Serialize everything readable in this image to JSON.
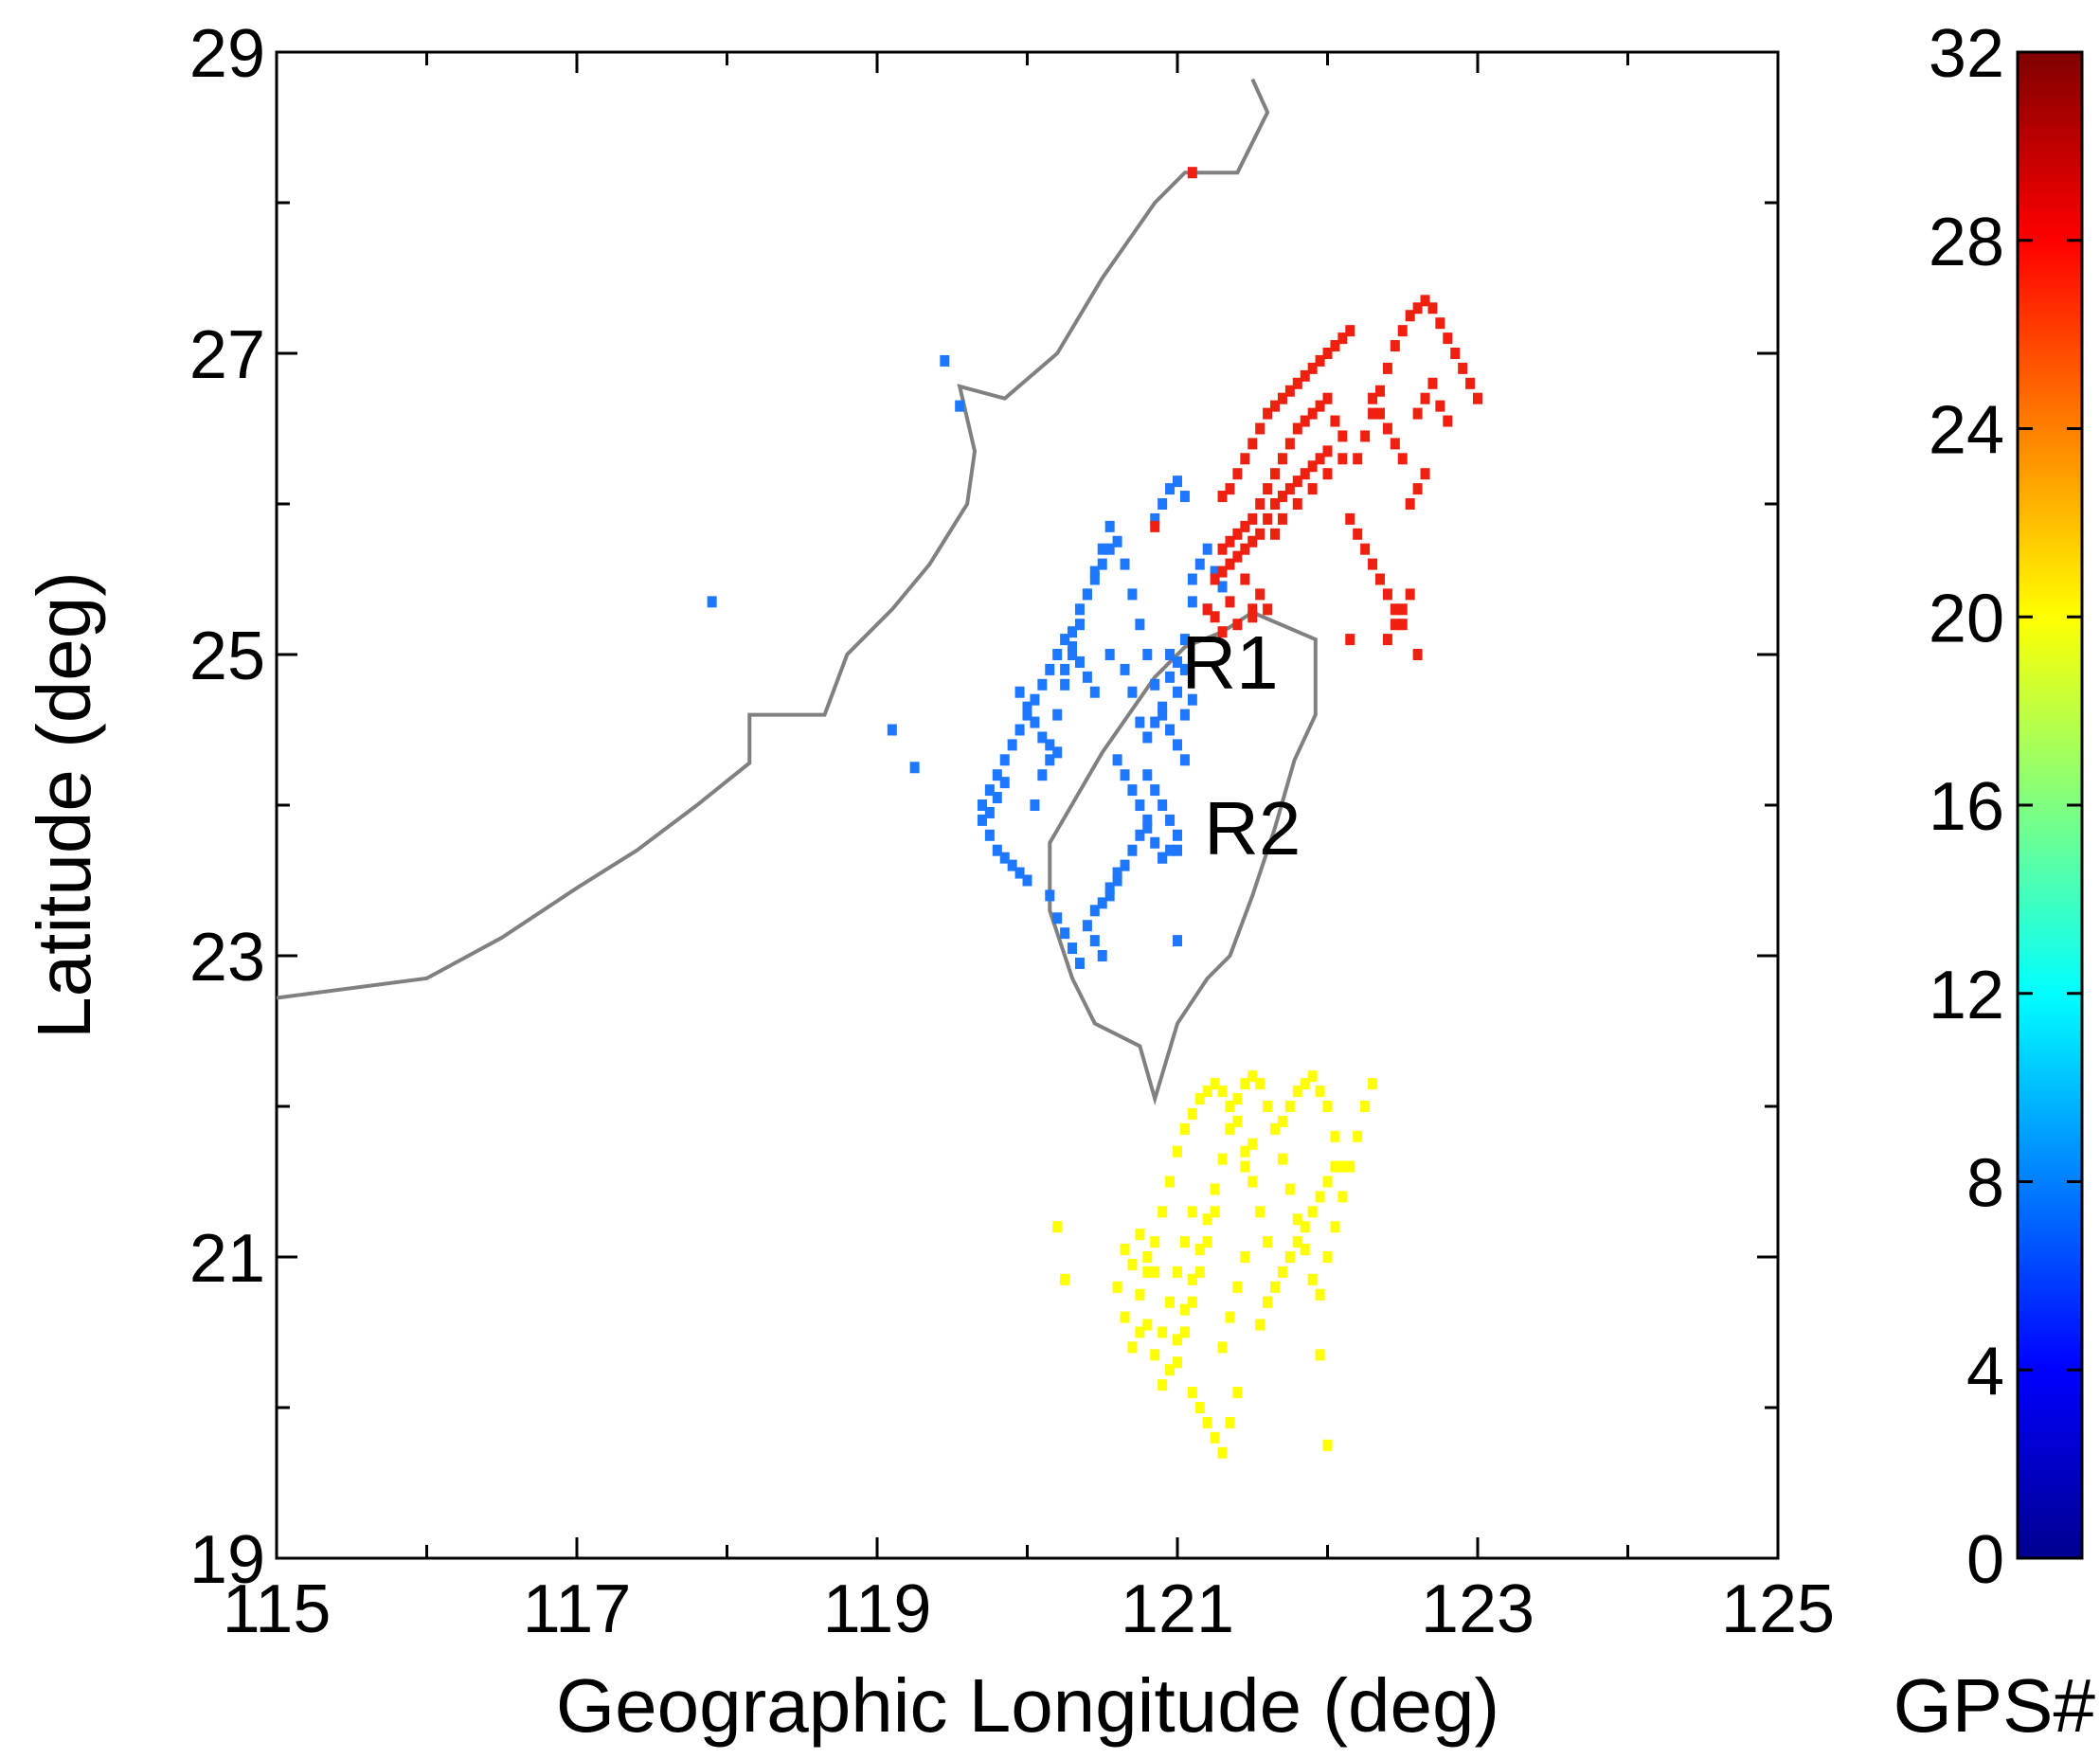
{
  "chart_data": {
    "type": "scatter",
    "title": "",
    "xlabel": "Geographic Longitude (deg)",
    "ylabel": "Latitude (deg)",
    "xlim": [
      115,
      125
    ],
    "ylim": [
      19,
      29
    ],
    "xticks": [
      115,
      117,
      119,
      121,
      123,
      125
    ],
    "yticks": [
      19,
      21,
      23,
      25,
      27,
      29
    ],
    "grid": false,
    "colorbar": {
      "label": "GPS#",
      "range": [
        0,
        32
      ],
      "ticks": [
        0,
        4,
        8,
        12,
        16,
        20,
        24,
        28,
        32
      ],
      "colormap": "jet"
    },
    "annotations": [
      {
        "text": "R1",
        "x": 121.35,
        "y": 24.95
      },
      {
        "text": "R2",
        "x": 121.5,
        "y": 23.85
      }
    ],
    "coastline": [
      [
        115.0,
        22.72
      ],
      [
        116.0,
        22.85
      ],
      [
        116.5,
        23.12
      ],
      [
        117.0,
        23.45
      ],
      [
        117.4,
        23.7
      ],
      [
        117.8,
        24.0
      ],
      [
        118.15,
        24.28
      ],
      [
        118.15,
        24.6
      ],
      [
        118.65,
        24.6
      ],
      [
        118.8,
        25.0
      ],
      [
        119.1,
        25.3
      ],
      [
        119.35,
        25.6
      ],
      [
        119.6,
        26.0
      ],
      [
        119.65,
        26.35
      ],
      [
        119.55,
        26.78
      ],
      [
        119.85,
        26.7
      ],
      [
        120.2,
        27.0
      ],
      [
        120.5,
        27.5
      ],
      [
        120.85,
        28.0
      ],
      [
        121.05,
        28.2
      ],
      [
        121.4,
        28.2
      ],
      [
        121.6,
        28.6
      ],
      [
        121.5,
        28.82
      ]
    ],
    "taiwan_outline": [
      [
        121.5,
        25.28
      ],
      [
        121.92,
        25.1
      ],
      [
        121.92,
        24.6
      ],
      [
        121.78,
        24.3
      ],
      [
        121.65,
        23.85
      ],
      [
        121.5,
        23.4
      ],
      [
        121.35,
        23.0
      ],
      [
        121.2,
        22.85
      ],
      [
        121.0,
        22.55
      ],
      [
        120.85,
        22.05
      ],
      [
        120.75,
        22.4
      ],
      [
        120.45,
        22.55
      ],
      [
        120.3,
        22.85
      ],
      [
        120.15,
        23.3
      ],
      [
        120.15,
        23.75
      ],
      [
        120.5,
        24.35
      ],
      [
        120.85,
        24.85
      ],
      [
        121.05,
        25.05
      ],
      [
        121.3,
        25.15
      ],
      [
        121.5,
        25.28
      ]
    ],
    "series": [
      {
        "name": "",
        "value": 9,
        "color": "#1e78ff",
        "x": [
          119.45,
          119.55,
          117.9,
          119.1,
          119.25,
          120.55,
          120.5,
          120.45,
          120.4,
          120.35,
          120.3,
          120.25,
          120.2,
          120.15,
          120.1,
          120.05,
          120.0,
          119.95,
          119.9,
          119.85,
          119.8,
          119.75,
          119.7,
          119.7,
          119.75,
          119.8,
          119.85,
          119.9,
          119.95,
          120.0,
          120.05,
          120.1,
          120.15,
          120.2,
          120.25,
          120.3,
          120.35,
          120.4,
          120.45,
          120.5,
          120.55,
          120.6,
          120.65,
          120.7,
          120.75,
          120.8,
          120.85,
          120.9,
          120.95,
          121.0,
          121.05,
          121.1,
          121.15,
          121.2,
          121.25,
          121.3,
          120.85,
          120.9,
          120.95,
          121.0,
          121.05,
          120.8,
          120.85,
          120.9,
          120.95,
          121.0,
          121.05,
          121.1,
          120.6,
          120.65,
          120.7,
          120.75,
          120.8,
          120.85,
          120.9,
          120.95,
          121.0,
          121.05,
          120.55,
          120.6,
          120.65,
          120.7,
          120.75,
          120.8,
          120.45,
          120.5,
          120.55,
          120.6,
          120.4,
          120.45,
          120.5,
          120.35,
          120.3,
          120.25,
          120.2,
          120.15,
          120.95,
          121.0,
          121.05,
          120.95,
          121.0,
          120.9,
          120.85,
          120.3,
          120.35,
          120.4,
          120.45,
          120.25,
          120.15,
          120.2,
          120.1,
          120.05,
          120.0,
          119.95,
          119.85,
          119.8,
          119.75,
          120.55,
          120.65,
          120.7,
          120.75,
          120.8,
          121.2,
          121.1,
          120.9,
          121.0
        ],
        "y": [
          26.95,
          26.65,
          25.35,
          24.5,
          24.25,
          25.85,
          25.7,
          25.55,
          25.4,
          25.3,
          25.15,
          25.1,
          25.0,
          24.9,
          24.8,
          24.7,
          24.6,
          24.5,
          24.4,
          24.3,
          24.2,
          24.1,
          24.0,
          23.9,
          23.8,
          23.7,
          23.65,
          23.6,
          23.55,
          23.5,
          24.0,
          24.2,
          24.4,
          24.6,
          24.8,
          25.0,
          25.2,
          25.4,
          25.5,
          25.6,
          25.7,
          25.75,
          25.6,
          25.4,
          25.2,
          25.0,
          24.8,
          24.6,
          24.5,
          24.4,
          24.3,
          25.5,
          25.6,
          25.7,
          25.55,
          25.45,
          25.9,
          26.0,
          26.1,
          26.15,
          26.05,
          24.2,
          24.1,
          24.0,
          23.9,
          23.7,
          24.6,
          24.7,
          24.3,
          24.2,
          24.1,
          24.0,
          23.85,
          23.75,
          23.65,
          23.7,
          23.8,
          24.9,
          23.4,
          23.5,
          23.6,
          23.7,
          23.8,
          23.9,
          23.3,
          23.35,
          23.45,
          23.55,
          23.2,
          23.1,
          23.0,
          22.95,
          23.05,
          23.15,
          23.25,
          23.4,
          25.0,
          24.95,
          25.1,
          24.85,
          24.75,
          24.65,
          24.55,
          25.05,
          24.95,
          24.85,
          24.75,
          24.9,
          24.3,
          24.35,
          24.45,
          24.55,
          24.65,
          24.75,
          24.15,
          24.05,
          23.95,
          25.0,
          24.9,
          24.75,
          24.55,
          24.45,
          25.3,
          25.35,
          23.65,
          23.1
        ]
      },
      {
        "name": "",
        "value": 29,
        "color": "#f02010",
        "x": [
          121.1,
          120.85,
          121.3,
          121.35,
          121.4,
          121.45,
          121.5,
          121.55,
          121.6,
          121.65,
          121.7,
          121.75,
          121.8,
          121.85,
          121.9,
          121.95,
          122.0,
          122.05,
          122.1,
          122.15,
          121.3,
          121.35,
          121.4,
          121.45,
          121.5,
          121.55,
          121.6,
          121.65,
          121.7,
          121.75,
          121.8,
          121.85,
          121.9,
          121.95,
          122.0,
          122.05,
          122.1,
          121.25,
          121.3,
          121.35,
          121.4,
          121.45,
          121.5,
          121.55,
          121.6,
          121.65,
          121.7,
          121.75,
          121.8,
          121.85,
          121.9,
          121.95,
          122.0,
          122.2,
          122.25,
          122.3,
          122.35,
          122.4,
          122.45,
          122.5,
          122.55,
          122.6,
          122.65,
          122.7,
          122.75,
          122.8,
          122.85,
          122.9,
          122.95,
          123.0,
          122.6,
          122.65,
          122.7,
          122.75,
          122.8,
          122.5,
          122.45,
          122.4,
          122.35,
          122.3,
          122.25,
          122.2,
          122.15,
          122.55,
          122.6,
          122.65,
          122.5,
          122.45,
          122.4,
          122.35,
          122.3,
          122.4,
          122.45,
          122.5,
          122.55,
          121.65,
          121.7,
          121.8,
          121.9,
          122.0,
          122.1,
          121.5,
          121.55,
          121.45,
          121.35,
          121.25,
          121.4,
          121.3,
          121.2,
          122.15,
          122.6,
          121.6,
          121.5
        ],
        "y": [
          28.2,
          25.85,
          26.05,
          26.1,
          26.2,
          26.3,
          26.4,
          26.5,
          26.6,
          26.65,
          26.7,
          26.75,
          26.8,
          26.85,
          26.9,
          26.95,
          27.0,
          27.05,
          27.1,
          27.15,
          25.7,
          25.75,
          25.8,
          25.85,
          25.9,
          26.0,
          26.1,
          26.2,
          26.3,
          26.4,
          26.5,
          26.55,
          26.6,
          26.65,
          26.7,
          26.55,
          26.45,
          25.5,
          25.55,
          25.6,
          25.65,
          25.7,
          25.75,
          25.8,
          25.9,
          26.0,
          26.05,
          26.1,
          26.15,
          26.2,
          26.25,
          26.3,
          26.35,
          26.3,
          26.45,
          26.6,
          26.75,
          26.9,
          27.05,
          27.15,
          27.25,
          27.3,
          27.35,
          27.3,
          27.2,
          27.1,
          27.0,
          26.9,
          26.8,
          26.7,
          26.6,
          26.7,
          26.8,
          26.65,
          26.55,
          25.2,
          25.3,
          25.4,
          25.5,
          25.6,
          25.7,
          25.8,
          25.9,
          26.0,
          26.1,
          26.2,
          26.3,
          26.4,
          26.5,
          26.6,
          26.7,
          25.1,
          25.2,
          25.3,
          25.4,
          25.8,
          25.9,
          26.0,
          26.1,
          26.2,
          26.3,
          25.3,
          25.4,
          25.5,
          25.35,
          25.25,
          25.2,
          25.15,
          25.3,
          25.1,
          25.0,
          25.3,
          25.25
        ]
      },
      {
        "name": "",
        "value": 20,
        "color": "#ffff00",
        "x": [
          120.2,
          120.25,
          120.6,
          120.65,
          120.7,
          120.75,
          120.8,
          120.85,
          120.9,
          120.95,
          121.0,
          121.05,
          121.1,
          121.15,
          121.2,
          121.25,
          121.3,
          121.35,
          121.4,
          121.45,
          121.5,
          121.55,
          121.6,
          120.65,
          120.7,
          120.75,
          120.8,
          120.85,
          120.9,
          120.95,
          121.0,
          121.05,
          121.1,
          121.15,
          121.2,
          121.25,
          121.3,
          121.35,
          121.4,
          121.45,
          121.5,
          121.55,
          121.6,
          121.65,
          121.7,
          121.75,
          121.8,
          121.85,
          121.9,
          121.95,
          122.0,
          122.05,
          122.1,
          122.15,
          122.2,
          122.25,
          122.3,
          121.7,
          121.75,
          121.8,
          121.85,
          121.9,
          121.95,
          122.0,
          122.05,
          122.1,
          121.6,
          121.65,
          121.7,
          121.75,
          121.8,
          121.85,
          121.9,
          121.95,
          122.0,
          122.05,
          121.1,
          121.15,
          121.2,
          121.25,
          121.3,
          121.35,
          121.4,
          121.0,
          121.05,
          121.1,
          121.15,
          121.2,
          121.25,
          120.9,
          120.95,
          121.0,
          121.05,
          121.1,
          121.3,
          121.35,
          121.4,
          121.45,
          122.0,
          121.95,
          121.55,
          121.6,
          120.8,
          120.85,
          120.75,
          121.5,
          121.45
        ],
        "y": [
          21.2,
          20.85,
          20.8,
          20.6,
          20.4,
          20.5,
          20.9,
          21.1,
          21.3,
          21.5,
          21.7,
          21.85,
          21.95,
          22.05,
          22.1,
          22.15,
          22.1,
          22.0,
          21.9,
          21.7,
          21.5,
          21.3,
          21.1,
          21.05,
          20.95,
          20.75,
          20.55,
          20.35,
          20.15,
          20.25,
          20.45,
          20.65,
          20.85,
          21.05,
          21.25,
          21.45,
          21.65,
          21.85,
          22.05,
          22.15,
          22.2,
          22.15,
          22.0,
          21.85,
          21.65,
          21.45,
          21.25,
          21.05,
          20.85,
          20.75,
          21.0,
          21.2,
          21.4,
          21.6,
          21.8,
          22.0,
          22.15,
          21.9,
          22.0,
          22.1,
          22.15,
          22.2,
          22.1,
          22.0,
          21.8,
          21.6,
          20.7,
          20.8,
          20.9,
          21.0,
          21.1,
          21.2,
          21.3,
          21.4,
          21.5,
          21.6,
          20.1,
          20.0,
          19.9,
          19.8,
          19.7,
          19.9,
          20.1,
          20.3,
          20.5,
          20.7,
          20.9,
          21.1,
          21.3,
          20.5,
          20.7,
          20.9,
          21.1,
          21.3,
          20.4,
          20.6,
          20.8,
          21.0,
          19.75,
          20.35,
          20.55,
          20.7,
          21.0,
          20.9,
          21.15,
          21.75,
          21.6
        ]
      }
    ]
  }
}
